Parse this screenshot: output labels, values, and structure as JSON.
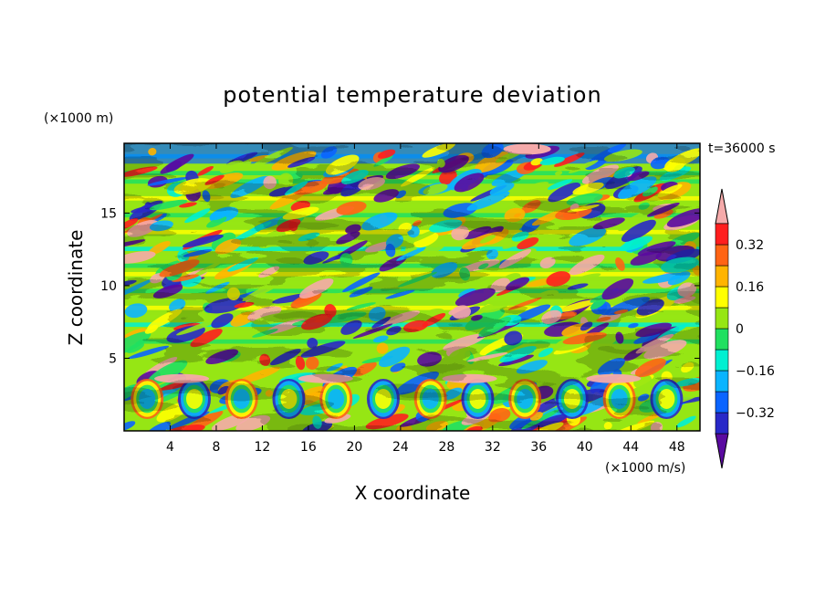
{
  "chart_data": {
    "type": "heatmap",
    "title": "potential temperature deviation",
    "xlabel": "X coordinate",
    "ylabel": "Z coordinate",
    "x_unit": "(×1000 m/s)",
    "y_unit": "(×1000 m)",
    "time_label": "t=36000 s",
    "xlim": [
      0,
      50
    ],
    "ylim": [
      0,
      19.8
    ],
    "x_ticks": [
      4,
      8,
      12,
      16,
      20,
      24,
      28,
      32,
      36,
      40,
      44,
      48
    ],
    "y_ticks": [
      5,
      10,
      15
    ],
    "grid": false,
    "colorbar": {
      "orientation": "vertical",
      "placement": "right",
      "tick_labels": [
        "0.32",
        "0.16",
        "0",
        "−0.16",
        "−0.32"
      ],
      "tick_values": [
        0.32,
        0.16,
        0,
        -0.16,
        -0.32
      ],
      "levels": [
        -0.4,
        -0.32,
        -0.24,
        -0.16,
        -0.08,
        0,
        0.08,
        0.16,
        0.24,
        0.32,
        0.4
      ],
      "colors_low_to_high": [
        "#5a0aa0",
        "#2828c8",
        "#0a64ff",
        "#0ab4ff",
        "#00f0d2",
        "#20e060",
        "#96e614",
        "#ffff00",
        "#ffb400",
        "#ff6414",
        "#ff1e1e",
        "#f5aaaa"
      ]
    },
    "field_description": "Fine-scale turbulent pattern of alternating positive and negative anomalies; horizontal layered bands above ~6 km, wave-like cells near 2–4 km, strong positive (pink) anomalies near 3.5 km and at the top (~19 km)."
  }
}
